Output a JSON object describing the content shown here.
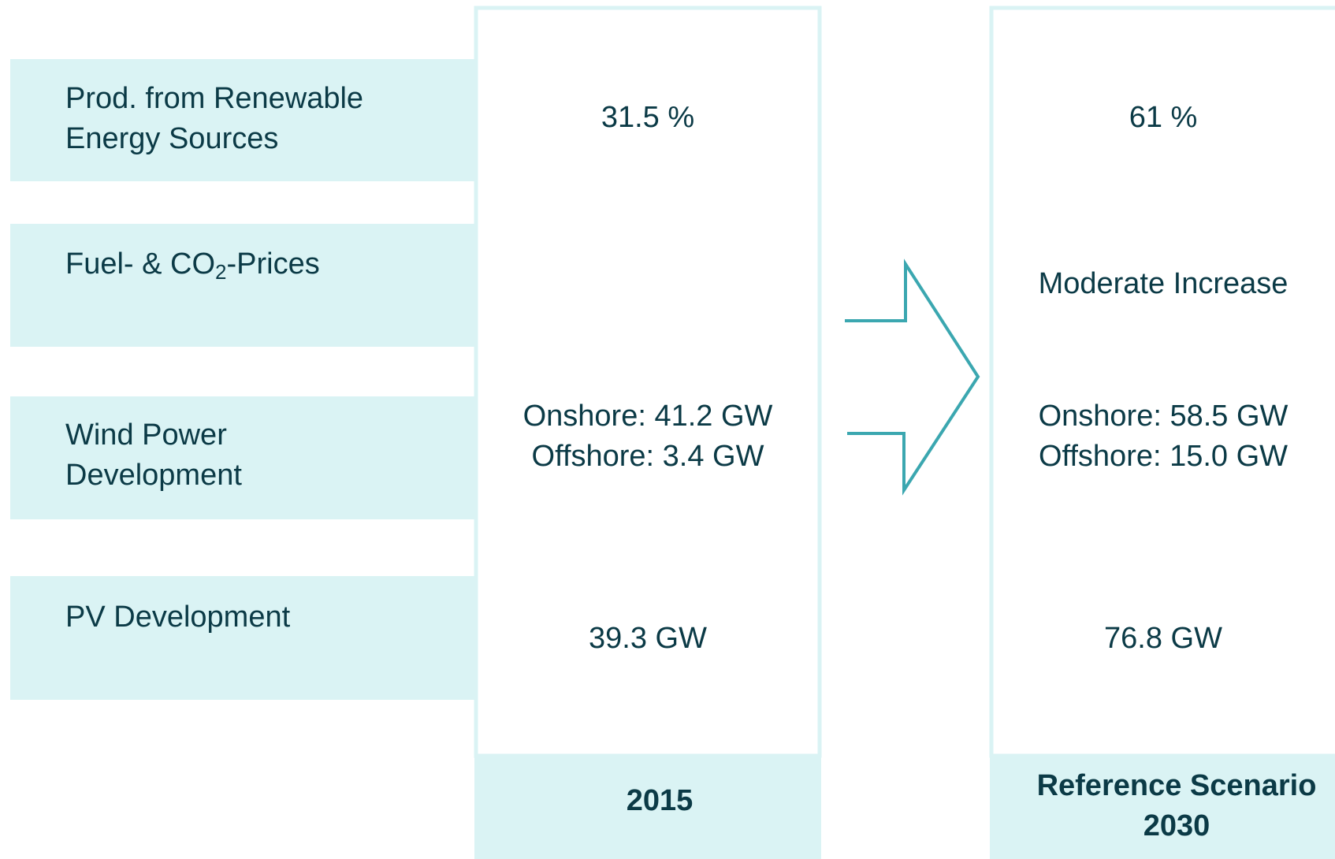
{
  "rows": [
    {
      "label": [
        "Prod. from Renewable",
        "Energy Sources"
      ]
    },
    {
      "label": [
        "Fuel- & CO",
        "2",
        "-Prices"
      ]
    },
    {
      "label": [
        "Wind Power",
        "Development"
      ]
    },
    {
      "label": [
        "PV Development"
      ]
    }
  ],
  "columns": [
    {
      "header": [
        "2015"
      ],
      "cells": [
        [
          "31.5 %"
        ],
        [],
        [
          "Onshore: 41.2 GW",
          "Offshore: 3.4 GW"
        ],
        [
          "39.3 GW"
        ]
      ]
    },
    {
      "header": [
        "Reference Scenario",
        "2030"
      ],
      "cells": [
        [
          "61 %"
        ],
        [
          "Moderate Increase"
        ],
        [
          "Onshore: 58.5 GW",
          "Offshore: 15.0 GW"
        ],
        [
          "76.8 GW"
        ]
      ]
    }
  ]
}
